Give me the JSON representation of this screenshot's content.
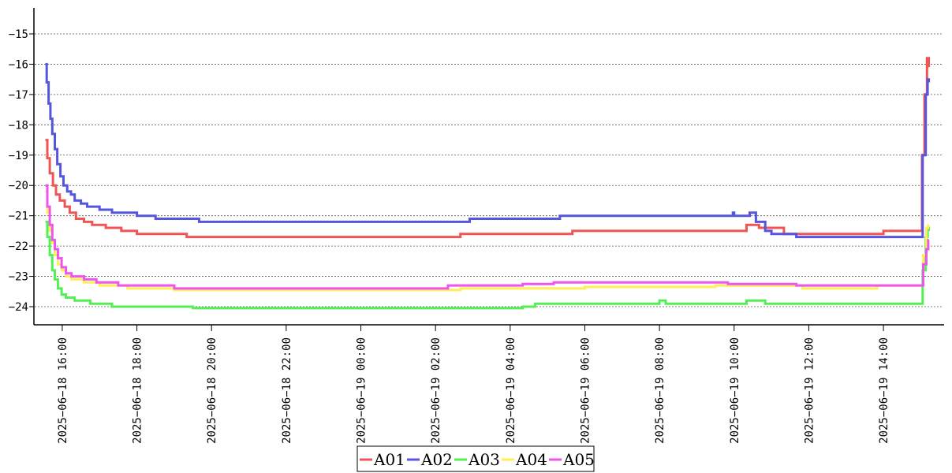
{
  "chart_data": {
    "type": "line",
    "title": "",
    "xlabel": "",
    "ylabel": "",
    "grid": true,
    "legend_placement": "bottom-center",
    "xlim": [
      "2025-06-18 15:17",
      "2025-06-19 15:35"
    ],
    "ylim": [
      -24.6,
      -14.2
    ],
    "y_ticks": [
      -15,
      -16,
      -17,
      -18,
      -19,
      -20,
      -21,
      -22,
      -23,
      -24
    ],
    "y_tick_labels": [
      "−15",
      "−16",
      "−17",
      "−18",
      "−19",
      "−20",
      "−21",
      "−22",
      "−23",
      "−24"
    ],
    "x_ticks": [
      "2025-06-18 16:00",
      "2025-06-18 18:00",
      "2025-06-18 20:00",
      "2025-06-18 22:00",
      "2025-06-19 00:00",
      "2025-06-19 02:00",
      "2025-06-19 04:00",
      "2025-06-19 06:00",
      "2025-06-19 08:00",
      "2025-06-19 10:00",
      "2025-06-19 12:00",
      "2025-06-19 14:00"
    ],
    "x_tick_labels": [
      "2025−06−18 16:00",
      "2025−06−18 18:00",
      "2025−06−18 20:00",
      "2025−06−18 22:00",
      "2025−06−19 00:00",
      "2025−06−19 02:00",
      "2025−06−19 04:00",
      "2025−06−19 06:00",
      "2025−06−19 08:00",
      "2025−06−19 10:00",
      "2025−06−19 12:00",
      "2025−06−19 14:00"
    ],
    "series": [
      {
        "name": "A01",
        "color": "#ee5555",
        "points": [
          [
            "2025-06-18 15:33",
            -18.5
          ],
          [
            "2025-06-18 15:36",
            -19.1
          ],
          [
            "2025-06-18 15:40",
            -19.6
          ],
          [
            "2025-06-18 15:45",
            -20.0
          ],
          [
            "2025-06-18 15:50",
            -20.3
          ],
          [
            "2025-06-18 15:56",
            -20.5
          ],
          [
            "2025-06-18 16:04",
            -20.7
          ],
          [
            "2025-06-18 16:12",
            -20.9
          ],
          [
            "2025-06-18 16:22",
            -21.1
          ],
          [
            "2025-06-18 16:35",
            -21.2
          ],
          [
            "2025-06-18 16:48",
            -21.3
          ],
          [
            "2025-06-18 17:10",
            -21.4
          ],
          [
            "2025-06-18 17:35",
            -21.5
          ],
          [
            "2025-06-18 18:00",
            -21.6
          ],
          [
            "2025-06-18 19:20",
            -21.7
          ],
          [
            "2025-06-19 02:40",
            -21.6
          ],
          [
            "2025-06-19 05:40",
            -21.5
          ],
          [
            "2025-06-19 10:20",
            -21.3
          ],
          [
            "2025-06-19 10:40",
            -21.4
          ],
          [
            "2025-06-19 11:20",
            -21.6
          ],
          [
            "2025-06-19 14:00",
            -21.5
          ],
          [
            "2025-06-19 14:58",
            -21.5
          ],
          [
            "2025-06-19 15:02",
            -19.0
          ],
          [
            "2025-06-19 15:06",
            -17.0
          ],
          [
            "2025-06-19 15:10",
            -15.8
          ],
          [
            "2025-06-19 15:13",
            -16.1
          ]
        ]
      },
      {
        "name": "A02",
        "color": "#5555dd",
        "points": [
          [
            "2025-06-18 15:33",
            -16.0
          ],
          [
            "2025-06-18 15:35",
            -16.6
          ],
          [
            "2025-06-18 15:38",
            -17.3
          ],
          [
            "2025-06-18 15:41",
            -17.8
          ],
          [
            "2025-06-18 15:44",
            -18.3
          ],
          [
            "2025-06-18 15:48",
            -18.8
          ],
          [
            "2025-06-18 15:52",
            -19.3
          ],
          [
            "2025-06-18 15:57",
            -19.7
          ],
          [
            "2025-06-18 16:02",
            -20.0
          ],
          [
            "2025-06-18 16:08",
            -20.2
          ],
          [
            "2025-06-18 16:14",
            -20.3
          ],
          [
            "2025-06-18 16:20",
            -20.5
          ],
          [
            "2025-06-18 16:30",
            -20.6
          ],
          [
            "2025-06-18 16:40",
            -20.7
          ],
          [
            "2025-06-18 17:00",
            -20.8
          ],
          [
            "2025-06-18 17:20",
            -20.9
          ],
          [
            "2025-06-18 18:00",
            -21.0
          ],
          [
            "2025-06-18 18:30",
            -21.1
          ],
          [
            "2025-06-18 19:40",
            -21.2
          ],
          [
            "2025-06-19 02:55",
            -21.1
          ],
          [
            "2025-06-19 05:20",
            -21.0
          ],
          [
            "2025-06-19 09:58",
            -20.9
          ],
          [
            "2025-06-19 10:00",
            -21.0
          ],
          [
            "2025-06-19 10:25",
            -20.9
          ],
          [
            "2025-06-19 10:35",
            -21.2
          ],
          [
            "2025-06-19 10:50",
            -21.5
          ],
          [
            "2025-06-19 11:00",
            -21.6
          ],
          [
            "2025-06-19 11:40",
            -21.7
          ],
          [
            "2025-06-19 14:50",
            -21.7
          ],
          [
            "2025-06-19 14:58",
            -21.7
          ],
          [
            "2025-06-19 15:03",
            -19.0
          ],
          [
            "2025-06-19 15:08",
            -17.0
          ],
          [
            "2025-06-19 15:11",
            -16.5
          ],
          [
            "2025-06-19 15:13",
            -16.6
          ]
        ]
      },
      {
        "name": "A03",
        "color": "#55ee55",
        "points": [
          [
            "2025-06-18 15:33",
            -21.2
          ],
          [
            "2025-06-18 15:36",
            -21.7
          ],
          [
            "2025-06-18 15:40",
            -22.3
          ],
          [
            "2025-06-18 15:44",
            -22.8
          ],
          [
            "2025-06-18 15:48",
            -23.1
          ],
          [
            "2025-06-18 15:53",
            -23.4
          ],
          [
            "2025-06-18 15:59",
            -23.6
          ],
          [
            "2025-06-18 16:06",
            -23.7
          ],
          [
            "2025-06-18 16:20",
            -23.8
          ],
          [
            "2025-06-18 16:45",
            -23.9
          ],
          [
            "2025-06-18 17:20",
            -24.0
          ],
          [
            "2025-06-18 19:30",
            -24.05
          ],
          [
            "2025-06-19 01:50",
            -24.05
          ],
          [
            "2025-06-19 04:20",
            -24.0
          ],
          [
            "2025-06-19 04:40",
            -23.9
          ],
          [
            "2025-06-19 08:00",
            -23.8
          ],
          [
            "2025-06-19 08:10",
            -23.9
          ],
          [
            "2025-06-19 10:20",
            -23.8
          ],
          [
            "2025-06-19 10:50",
            -23.9
          ],
          [
            "2025-06-19 14:55",
            -23.9
          ],
          [
            "2025-06-19 14:58",
            -23.9
          ],
          [
            "2025-06-19 15:03",
            -22.8
          ],
          [
            "2025-06-19 15:08",
            -21.7
          ],
          [
            "2025-06-19 15:11",
            -21.4
          ],
          [
            "2025-06-19 15:13",
            -21.5
          ]
        ]
      },
      {
        "name": "A04",
        "color": "#ffee55",
        "points": [
          [
            "2025-06-18 15:33",
            -20.2
          ],
          [
            "2025-06-18 15:36",
            -20.9
          ],
          [
            "2025-06-18 15:40",
            -21.5
          ],
          [
            "2025-06-18 15:44",
            -21.9
          ],
          [
            "2025-06-18 15:48",
            -22.3
          ],
          [
            "2025-06-18 15:53",
            -22.6
          ],
          [
            "2025-06-18 15:59",
            -22.8
          ],
          [
            "2025-06-18 16:06",
            -23.0
          ],
          [
            "2025-06-18 16:15",
            -23.1
          ],
          [
            "2025-06-18 16:35",
            -23.2
          ],
          [
            "2025-06-18 17:00",
            -23.3
          ],
          [
            "2025-06-18 17:45",
            -23.4
          ],
          [
            "2025-06-18 19:00",
            -23.45
          ],
          [
            "2025-06-19 02:00",
            -23.45
          ],
          [
            "2025-06-19 02:40",
            -23.4
          ],
          [
            "2025-06-19 06:00",
            -23.35
          ],
          [
            "2025-06-19 09:30",
            -23.3
          ],
          [
            "2025-06-19 11:50",
            -23.4
          ],
          [
            "2025-06-19 13:50",
            -23.3
          ],
          [
            "2025-06-19 14:58",
            -23.3
          ],
          [
            "2025-06-19 15:04",
            -22.3
          ],
          [
            "2025-06-19 15:09",
            -21.4
          ],
          [
            "2025-06-19 15:12",
            -21.3
          ],
          [
            "2025-06-19 15:13",
            -21.3
          ]
        ]
      },
      {
        "name": "A05",
        "color": "#ee55ee",
        "points": [
          [
            "2025-06-18 15:33",
            -20.0
          ],
          [
            "2025-06-18 15:36",
            -20.7
          ],
          [
            "2025-06-18 15:40",
            -21.3
          ],
          [
            "2025-06-18 15:44",
            -21.8
          ],
          [
            "2025-06-18 15:48",
            -22.1
          ],
          [
            "2025-06-18 15:53",
            -22.4
          ],
          [
            "2025-06-18 15:59",
            -22.7
          ],
          [
            "2025-06-18 16:06",
            -22.9
          ],
          [
            "2025-06-18 16:15",
            -23.0
          ],
          [
            "2025-06-18 16:35",
            -23.1
          ],
          [
            "2025-06-18 16:55",
            -23.2
          ],
          [
            "2025-06-18 17:30",
            -23.3
          ],
          [
            "2025-06-18 19:00",
            -23.4
          ],
          [
            "2025-06-19 02:20",
            -23.3
          ],
          [
            "2025-06-19 04:20",
            -23.25
          ],
          [
            "2025-06-19 05:10",
            -23.2
          ],
          [
            "2025-06-19 09:50",
            -23.25
          ],
          [
            "2025-06-19 11:40",
            -23.3
          ],
          [
            "2025-06-19 14:58",
            -23.3
          ],
          [
            "2025-06-19 15:04",
            -22.6
          ],
          [
            "2025-06-19 15:09",
            -22.1
          ],
          [
            "2025-06-19 15:12",
            -21.8
          ],
          [
            "2025-06-19 15:13",
            -21.8
          ]
        ]
      }
    ]
  }
}
